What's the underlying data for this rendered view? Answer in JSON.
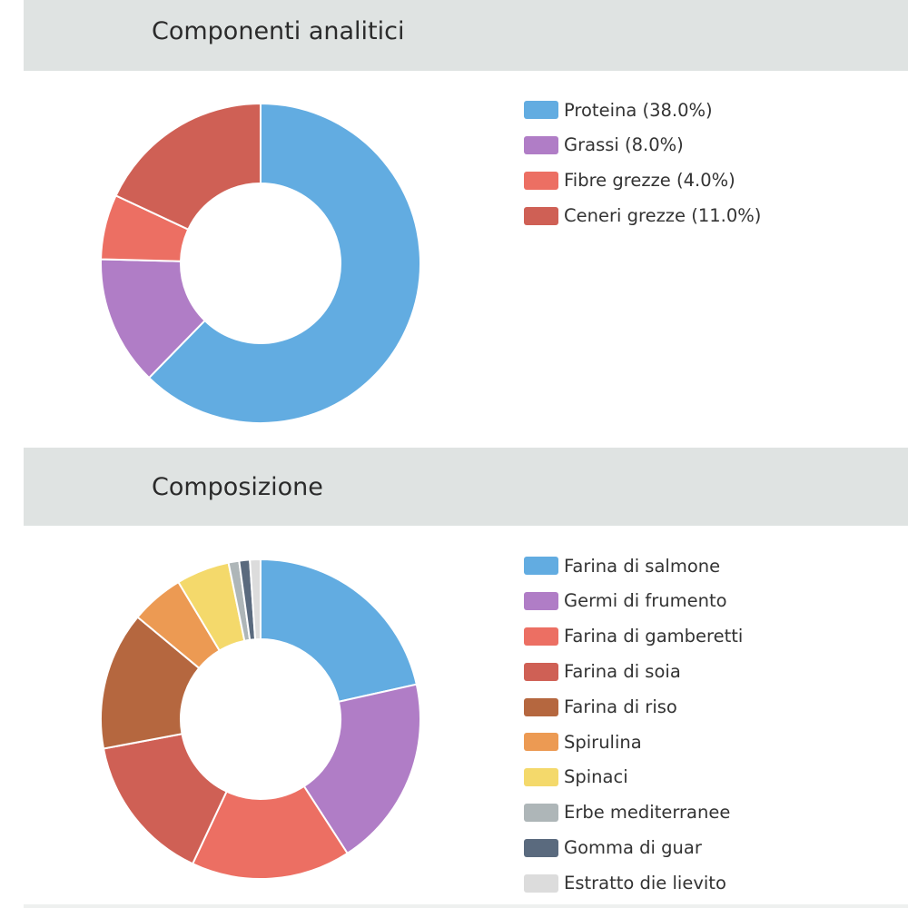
{
  "sections": [
    {
      "title": "Componenti analitici"
    },
    {
      "title": "Composizione"
    }
  ],
  "chart_data": [
    {
      "type": "pie",
      "donut": true,
      "title": "Componenti analitici",
      "categories": [
        "Proteina (38.0%)",
        "Grassi (8.0%)",
        "Fibre grezze (4.0%)",
        "Ceneri grezze (11.0%)"
      ],
      "values": [
        38.0,
        8.0,
        4.0,
        11.0
      ],
      "colors": [
        "#62ace1",
        "#b07dc6",
        "#ec6f63",
        "#cf6055"
      ],
      "legend_position": "right"
    },
    {
      "type": "pie",
      "donut": true,
      "title": "Composizione",
      "categories": [
        "Farina di salmone",
        "Germi di frumento",
        "Farina di gamberetti",
        "Farina di soia",
        "Farina di riso",
        "Spirulina",
        "Spinaci",
        "Erbe mediterranee",
        "Gomma di guar",
        "Estratto die lievito"
      ],
      "values": [
        20,
        18,
        15,
        14,
        13,
        5,
        5,
        1,
        1,
        1
      ],
      "colors": [
        "#62ace1",
        "#b07dc6",
        "#ec6f63",
        "#cf6055",
        "#b5673f",
        "#ec9a53",
        "#f4d96b",
        "#aeb6b8",
        "#5a6a7e",
        "#dcdcdc"
      ],
      "legend_position": "right"
    }
  ]
}
